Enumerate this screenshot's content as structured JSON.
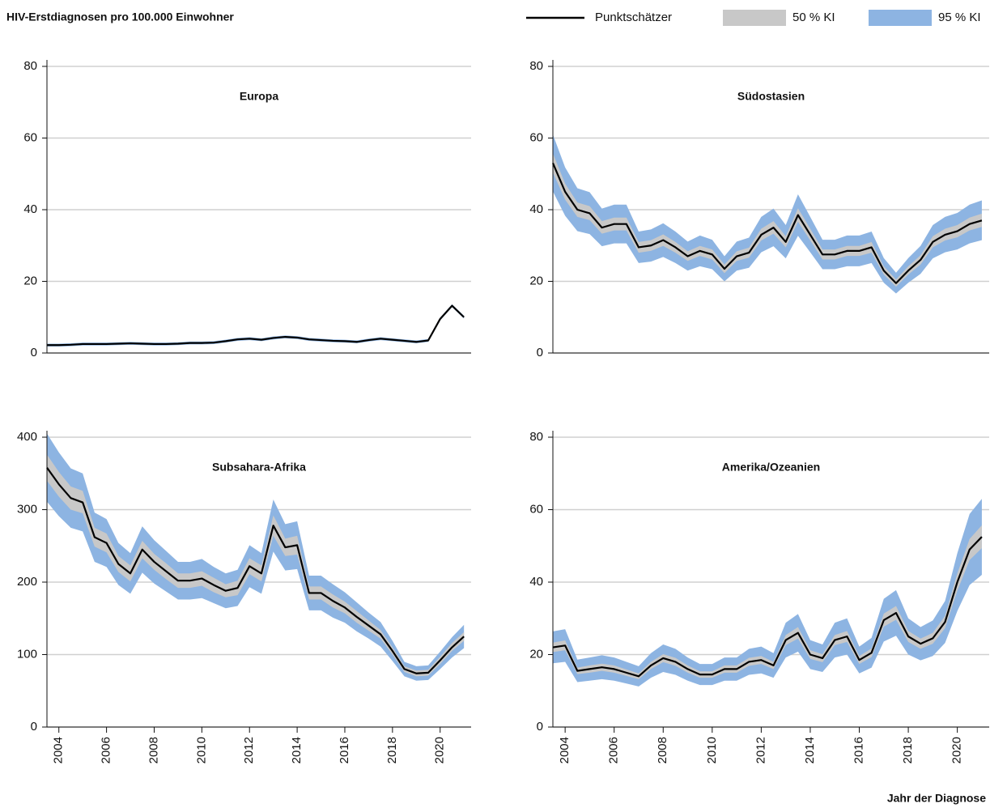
{
  "title": "HIV-Erstdiagnosen pro 100.000 Einwohner",
  "x_label": "Jahr der Diagnose",
  "chart_data": [
    {
      "type": "line",
      "title": "Europa",
      "x": [
        2003.5,
        2004,
        2004.5,
        2005,
        2005.5,
        2006,
        2006.5,
        2007,
        2007.5,
        2008,
        2008.5,
        2009,
        2009.5,
        2010,
        2010.5,
        2011,
        2011.5,
        2012,
        2012.5,
        2013,
        2013.5,
        2014,
        2014.5,
        2015,
        2015.5,
        2016,
        2016.5,
        2017,
        2017.5,
        2018,
        2018.5,
        2019,
        2019.5,
        2020,
        2020.5,
        2021
      ],
      "xlim": [
        2003.5,
        2021.3
      ],
      "ylim": [
        0,
        80
      ],
      "yticks": [
        0,
        20,
        40,
        60,
        80
      ],
      "grid": true,
      "series": [
        {
          "name": "95 % KI",
          "color": "#8db4e2",
          "lower": [
            1.8,
            1.8,
            1.9,
            2.1,
            2.1,
            2.1,
            2.2,
            2.3,
            2.2,
            2.1,
            2.1,
            2.2,
            2.4,
            2.4,
            2.5,
            2.9,
            3.4,
            3.6,
            3.3,
            3.8,
            4.1,
            3.9,
            3.4,
            3.2,
            3.0,
            2.9,
            2.7,
            3.2,
            3.6,
            3.3,
            3.0,
            2.7,
            3.1,
            9.1,
            12.8,
            9.6
          ],
          "upper": [
            2.6,
            2.6,
            2.7,
            2.9,
            2.9,
            2.9,
            3.0,
            3.1,
            3.0,
            2.9,
            2.9,
            3.0,
            3.2,
            3.2,
            3.3,
            3.7,
            4.2,
            4.4,
            4.1,
            4.6,
            4.9,
            4.7,
            4.2,
            4.0,
            3.8,
            3.7,
            3.5,
            4.0,
            4.4,
            4.1,
            3.8,
            3.5,
            3.9,
            9.9,
            13.6,
            10.4
          ]
        },
        {
          "name": "50 % KI",
          "color": "#c8c8c8",
          "lower": [
            2.0,
            2.0,
            2.1,
            2.3,
            2.3,
            2.3,
            2.4,
            2.5,
            2.4,
            2.3,
            2.3,
            2.4,
            2.6,
            2.6,
            2.7,
            3.1,
            3.6,
            3.8,
            3.5,
            4.0,
            4.3,
            4.1,
            3.6,
            3.4,
            3.2,
            3.1,
            2.9,
            3.4,
            3.8,
            3.5,
            3.2,
            2.9,
            3.3,
            9.3,
            13.0,
            9.8
          ],
          "upper": [
            2.4,
            2.4,
            2.5,
            2.7,
            2.7,
            2.7,
            2.8,
            2.9,
            2.8,
            2.7,
            2.7,
            2.8,
            3.0,
            3.0,
            3.1,
            3.5,
            4.0,
            4.2,
            3.9,
            4.4,
            4.7,
            4.5,
            4.0,
            3.8,
            3.6,
            3.5,
            3.3,
            3.8,
            4.2,
            3.9,
            3.6,
            3.3,
            3.7,
            9.7,
            13.4,
            10.2
          ]
        },
        {
          "name": "Punktschätzer",
          "color": "#000000",
          "values": [
            2.2,
            2.2,
            2.3,
            2.5,
            2.5,
            2.5,
            2.6,
            2.7,
            2.6,
            2.5,
            2.5,
            2.6,
            2.8,
            2.8,
            2.9,
            3.3,
            3.8,
            4.0,
            3.7,
            4.2,
            4.5,
            4.3,
            3.8,
            3.6,
            3.4,
            3.3,
            3.1,
            3.6,
            4.0,
            3.7,
            3.4,
            3.1,
            3.5,
            9.5,
            13.2,
            10.0
          ]
        }
      ]
    },
    {
      "type": "line",
      "title": "Südostasien",
      "x": [
        2003.5,
        2004,
        2004.5,
        2005,
        2005.5,
        2006,
        2006.5,
        2007,
        2007.5,
        2008,
        2008.5,
        2009,
        2009.5,
        2010,
        2010.5,
        2011,
        2011.5,
        2012,
        2012.5,
        2013,
        2013.5,
        2014,
        2014.5,
        2015,
        2015.5,
        2016,
        2016.5,
        2017,
        2017.5,
        2018,
        2018.5,
        2019,
        2019.5,
        2020,
        2020.5,
        2021
      ],
      "xlim": [
        2003.5,
        2021.3
      ],
      "ylim": [
        0,
        80
      ],
      "yticks": [
        0,
        20,
        40,
        60,
        80
      ],
      "grid": true,
      "series": [
        {
          "name": "95 % KI",
          "color": "#8db4e2",
          "lower": [
            45.1,
            38.3,
            34,
            33.2,
            29.8,
            30.6,
            30.6,
            25.1,
            25.5,
            26.8,
            25.1,
            23,
            24.2,
            23.4,
            20,
            23,
            23.8,
            28.1,
            29.8,
            26.4,
            32.7,
            28.1,
            23.4,
            23.4,
            24.2,
            24.2,
            25.1,
            19.6,
            16.6,
            19.6,
            22.1,
            26.4,
            28.1,
            28.9,
            30.6,
            31.5
          ],
          "upper": [
            61,
            51.8,
            46,
            44.9,
            40.3,
            41.4,
            41.4,
            33.9,
            34.5,
            36.2,
            33.9,
            31.1,
            32.8,
            31.6,
            27,
            31.1,
            32.2,
            38,
            40.3,
            35.7,
            44.3,
            38,
            31.6,
            31.6,
            32.8,
            32.8,
            33.9,
            26.5,
            22.4,
            26.5,
            29.9,
            35.7,
            38,
            39.1,
            41.4,
            42.6
          ]
        },
        {
          "name": "50 % KI",
          "color": "#c8c8c8",
          "lower": [
            50.4,
            42.8,
            38,
            37.1,
            33.3,
            34.2,
            34.2,
            28,
            28.5,
            29.9,
            28,
            25.7,
            27.1,
            26.1,
            22.3,
            25.7,
            26.6,
            31.4,
            33.3,
            29.5,
            36.6,
            31.4,
            26.1,
            26.1,
            27.1,
            27.1,
            28,
            21.9,
            18.5,
            21.9,
            24.7,
            29.5,
            31.4,
            32.3,
            34.2,
            35.2
          ],
          "upper": [
            55.7,
            47.3,
            42,
            41,
            36.8,
            37.8,
            37.8,
            31,
            31.5,
            33.1,
            31,
            28.4,
            29.9,
            28.9,
            24.7,
            28.4,
            29.4,
            34.7,
            36.8,
            32.6,
            40.4,
            34.7,
            28.9,
            28.9,
            29.9,
            29.9,
            31,
            24.2,
            20.5,
            24.2,
            27.3,
            32.6,
            34.7,
            35.7,
            37.8,
            38.9
          ]
        },
        {
          "name": "Punktschätzer",
          "color": "#000000",
          "values": [
            53,
            45,
            40,
            39,
            35,
            36,
            36,
            29.5,
            30,
            31.5,
            29.5,
            27,
            28.5,
            27.5,
            23.5,
            27,
            28,
            33,
            35,
            31,
            38.5,
            33,
            27.5,
            27.5,
            28.5,
            28.5,
            29.5,
            23,
            19.5,
            23,
            26,
            31,
            33,
            34,
            36,
            37
          ]
        }
      ]
    },
    {
      "type": "line",
      "title": "Subsahara-Afrika",
      "x": [
        2003.5,
        2004,
        2004.5,
        2005,
        2005.5,
        2006,
        2006.5,
        2007,
        2007.5,
        2008,
        2008.5,
        2009,
        2009.5,
        2010,
        2010.5,
        2011,
        2011.5,
        2012,
        2012.5,
        2013,
        2013.5,
        2014,
        2014.5,
        2015,
        2015.5,
        2016,
        2016.5,
        2017,
        2017.5,
        2018,
        2018.5,
        2019,
        2019.5,
        2020,
        2020.5,
        2021
      ],
      "xlim": [
        2003.5,
        2021.3
      ],
      "xticks": [
        2004,
        2006,
        2008,
        2010,
        2012,
        2014,
        2016,
        2018,
        2020
      ],
      "ylim": [
        0,
        400
      ],
      "yticks": [
        0,
        100,
        200,
        300,
        400
      ],
      "grid": true,
      "series": [
        {
          "name": "95 % KI",
          "color": "#8db4e2",
          "lower": [
            311,
            291,
            275,
            270,
            228,
            221,
            196,
            184,
            213,
            198,
            187,
            176,
            176,
            178,
            171,
            164,
            167,
            193,
            184,
            242,
            216,
            218,
            161,
            161,
            151,
            144,
            132,
            122,
            111,
            91,
            70,
            64,
            65,
            80,
            96,
            109
          ],
          "upper": [
            405,
            379,
            357,
            350,
            296,
            287,
            254,
            240,
            277,
            258,
            243,
            228,
            228,
            232,
            221,
            212,
            217,
            251,
            240,
            314,
            280,
            284,
            209,
            209,
            197,
            186,
            172,
            158,
            145,
            119,
            90,
            84,
            85,
            104,
            124,
            141
          ]
        },
        {
          "name": "50 % KI",
          "color": "#c8c8c8",
          "lower": [
            340,
            318,
            300,
            295,
            249,
            241,
            214,
            201,
            233,
            217,
            204,
            192,
            192,
            195,
            186,
            179,
            182,
            211,
            201,
            264,
            236,
            238,
            176,
            176,
            165,
            157,
            144,
            133,
            122,
            100,
            76,
            70,
            71,
            87,
            105,
            119
          ],
          "upper": [
            376,
            352,
            332,
            326,
            275,
            267,
            236,
            223,
            257,
            239,
            226,
            212,
            212,
            215,
            206,
            197,
            202,
            233,
            223,
            292,
            260,
            264,
            194,
            194,
            183,
            173,
            160,
            147,
            134,
            110,
            84,
            78,
            79,
            97,
            116,
            131
          ]
        },
        {
          "name": "Punktschätzer",
          "color": "#000000",
          "values": [
            358,
            335,
            316,
            310,
            262,
            254,
            225,
            212,
            245,
            228,
            215,
            202,
            202,
            205,
            196,
            188,
            192,
            222,
            212,
            278,
            248,
            251,
            185,
            185,
            174,
            165,
            152,
            140,
            128,
            105,
            80,
            74,
            75,
            92,
            110,
            125
          ]
        }
      ]
    },
    {
      "type": "line",
      "title": "Amerika/Ozeanien",
      "x": [
        2003.5,
        2004,
        2004.5,
        2005,
        2005.5,
        2006,
        2006.5,
        2007,
        2007.5,
        2008,
        2008.5,
        2009,
        2009.5,
        2010,
        2010.5,
        2011,
        2011.5,
        2012,
        2012.5,
        2013,
        2013.5,
        2014,
        2014.5,
        2015,
        2015.5,
        2016,
        2016.5,
        2017,
        2017.5,
        2018,
        2018.5,
        2019,
        2019.5,
        2020,
        2020.5,
        2021
      ],
      "xlim": [
        2003.5,
        2021.3
      ],
      "xticks": [
        2004,
        2006,
        2008,
        2010,
        2012,
        2014,
        2016,
        2018,
        2020
      ],
      "ylim": [
        0,
        80
      ],
      "yticks": [
        0,
        20,
        40,
        60,
        80
      ],
      "grid": true,
      "series": [
        {
          "name": "95 % KI",
          "color": "#8db4e2",
          "lower": [
            17.6,
            18,
            12.4,
            12.8,
            13.2,
            12.8,
            12,
            11.2,
            13.6,
            15.2,
            14.4,
            12.8,
            11.6,
            11.6,
            12.8,
            12.8,
            14.4,
            14.8,
            13.6,
            19.2,
            20.8,
            16,
            15.2,
            19.2,
            20,
            14.8,
            16.4,
            23.6,
            25.2,
            20,
            18.4,
            19.6,
            23.2,
            32,
            39.2,
            42
          ],
          "upper": [
            26.4,
            27,
            18.6,
            19.2,
            19.8,
            19.2,
            18,
            16.8,
            20.4,
            22.8,
            21.6,
            19.2,
            17.4,
            17.4,
            19.2,
            19.2,
            21.6,
            22.2,
            20.4,
            28.8,
            31.2,
            24,
            22.8,
            28.8,
            30,
            22.2,
            24.6,
            35.4,
            37.8,
            30,
            27.6,
            29.4,
            34.8,
            48,
            58.8,
            63
          ]
        },
        {
          "name": "50 % KI",
          "color": "#c8c8c8",
          "lower": [
            20.7,
            21.2,
            14.6,
            15,
            15.5,
            15,
            14.1,
            13.2,
            16,
            17.9,
            16.9,
            15,
            13.6,
            13.6,
            15,
            15,
            16.9,
            17.4,
            16,
            22.6,
            24.4,
            18.8,
            17.9,
            22.6,
            23.5,
            17.4,
            19.3,
            27.7,
            29.6,
            23.5,
            21.6,
            23,
            27.3,
            37.6,
            46.1,
            49.4
          ],
          "upper": [
            23.3,
            23.9,
            16.4,
            17,
            17.5,
            17,
            15.9,
            14.8,
            18,
            20.1,
            19.1,
            17,
            15.4,
            15.4,
            17,
            17,
            19.1,
            19.6,
            18,
            25.4,
            27.6,
            21.2,
            20.1,
            25.4,
            26.5,
            19.6,
            21.7,
            31.3,
            33.4,
            26.5,
            24.4,
            26,
            30.7,
            42.4,
            51.9,
            55.7
          ]
        },
        {
          "name": "Punktschätzer",
          "color": "#000000",
          "values": [
            22,
            22.5,
            15.5,
            16,
            16.5,
            16,
            15,
            14,
            17,
            19,
            18,
            16,
            14.5,
            14.5,
            16,
            16,
            18,
            18.5,
            17,
            24,
            26,
            20,
            19,
            24,
            25,
            18.5,
            20.5,
            29.5,
            31.5,
            25,
            23,
            24.5,
            29,
            40,
            49,
            52.5
          ]
        }
      ]
    }
  ]
}
